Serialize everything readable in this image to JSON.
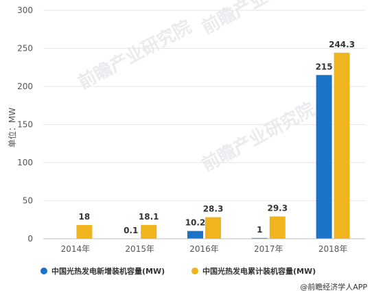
{
  "chart_data": {
    "type": "bar",
    "categories": [
      "2014年",
      "2015年",
      "2016年",
      "2017年",
      "2018年"
    ],
    "series": [
      {
        "name": "中国光热发电新增装机容量(MW)",
        "color": "#1a73c7",
        "values": [
          null,
          0.1,
          10.2,
          1,
          215
        ],
        "labels": [
          "",
          "0.1",
          "10.2",
          "1",
          "215"
        ]
      },
      {
        "name": "中国光热发电累计装机容量(MW)",
        "color": "#f0b41e",
        "values": [
          18,
          18.1,
          28.3,
          29.3,
          244.3
        ],
        "labels": [
          "18",
          "18.1",
          "28.3",
          "29.3",
          "244.3"
        ]
      }
    ],
    "ylabel": "单位：MW",
    "ylim": [
      0,
      300
    ],
    "yticks": [
      0,
      50,
      100,
      150,
      200,
      250,
      300
    ],
    "grid": true,
    "legend": "bottom-left"
  },
  "watermark": "前瞻产业研究院",
  "source": "@前瞻经济学人APP"
}
